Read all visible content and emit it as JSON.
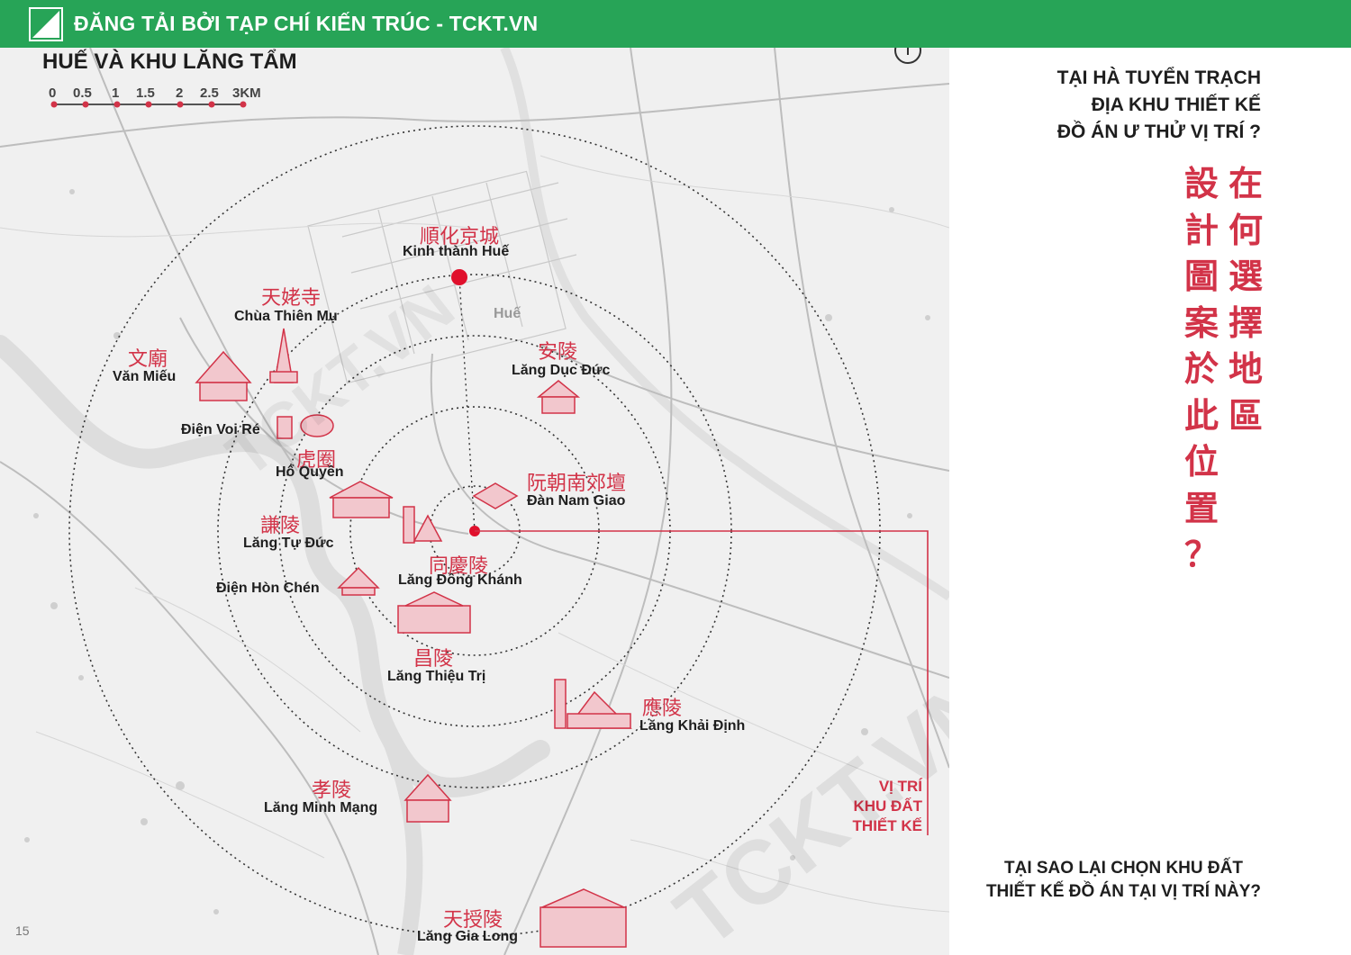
{
  "banner": {
    "title": "ĐĂNG TẢI BỞI TẠP CHÍ KIẾN TRÚC - TCKT.VN"
  },
  "map": {
    "title": "HUẾ VÀ KHU LĂNG TẨM",
    "scale": [
      "0",
      "0.5",
      "1",
      "1.5",
      "2",
      "2.5",
      "3KM"
    ],
    "city_label": "Huế",
    "places": [
      {
        "cn": "順化京城",
        "vn": "Kinh thành Huế"
      },
      {
        "cn": "天姥寺",
        "vn": "Chùa Thiên Mụ"
      },
      {
        "cn": "文廟",
        "vn": "Văn Miếu"
      },
      {
        "cn": "安陵",
        "vn": "Lăng Dục Đức"
      },
      {
        "cn": "",
        "vn": "Điện Voi Ré"
      },
      {
        "cn": "虎圈",
        "vn": "Hổ Quyền"
      },
      {
        "cn": "阮朝南郊壇",
        "vn": "Đàn Nam Giao"
      },
      {
        "cn": "謙陵",
        "vn": "Lăng Tự Đức"
      },
      {
        "cn": "同慶陵",
        "vn": "Lăng Đồng Khánh"
      },
      {
        "cn": "",
        "vn": "Điện Hòn Chén"
      },
      {
        "cn": "昌陵",
        "vn": "Lăng Thiệu Trị"
      },
      {
        "cn": "應陵",
        "vn": "Lăng Khải Định"
      },
      {
        "cn": "孝陵",
        "vn": "Lăng Minh Mạng"
      },
      {
        "cn": "天授陵",
        "vn": "Lăng Gia Long"
      }
    ],
    "site_label": [
      "VỊ TRÍ",
      "KHU ĐẤT",
      "THIẾT KẾ"
    ],
    "page_number": "15",
    "watermark": "TCKT.VN"
  },
  "side": {
    "question_lines": [
      "TẠI HÀ TUYỂN TRẠCH",
      "ĐỊA KHU THIẾT KẾ",
      "ĐỒ ÁN Ư THỬ VỊ TRÍ ?"
    ],
    "cn_col_right": [
      "在",
      "何",
      "選",
      "擇",
      "地",
      "區"
    ],
    "cn_col_left": [
      "設",
      "計",
      "圖",
      "案",
      "於",
      "此",
      "位",
      "置",
      "？"
    ],
    "bottom_lines": [
      "TẠI SAO LẠI CHỌN KHU ĐẤT",
      "THIẾT KẾ ĐỒ ÁN TẠI VỊ TRÍ NÀY?"
    ]
  },
  "colors": {
    "accent_red": "#d23348",
    "banner_green": "#27a457",
    "map_bg": "#f0f0f0"
  }
}
